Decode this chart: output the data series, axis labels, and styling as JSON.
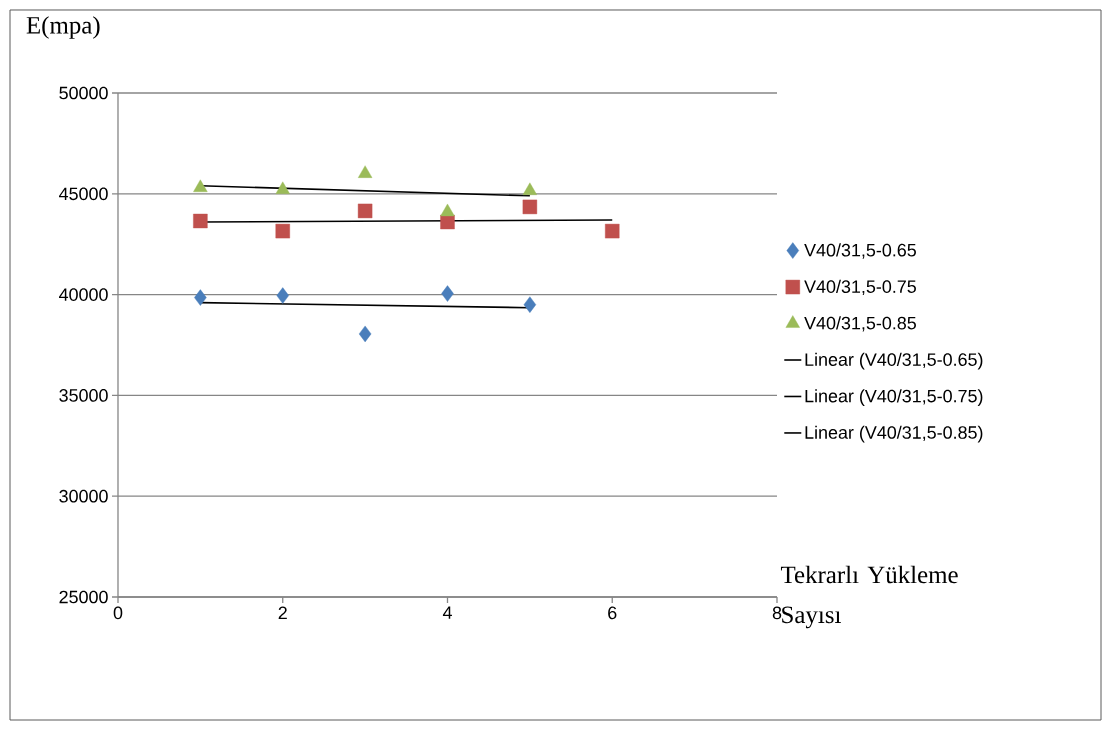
{
  "chart_data": {
    "type": "scatter",
    "xlabel": "Tekrarlı Yükleme Sayısı",
    "ylabel": "E(mpa)",
    "xlim": [
      0,
      8
    ],
    "xticks": [
      0,
      2,
      4,
      6,
      8
    ],
    "ylim": [
      25000,
      50000
    ],
    "yticks": [
      25000,
      30000,
      35000,
      40000,
      45000,
      50000
    ],
    "grid": "y",
    "legend": "right",
    "series": [
      {
        "name": "V40/31,5-0.65",
        "type": "scatter",
        "marker": "diamond",
        "color": "#4a7ebb",
        "x": [
          1,
          2,
          3,
          4,
          5
        ],
        "values": [
          39850,
          39950,
          38050,
          40050,
          39500
        ]
      },
      {
        "name": "V40/31,5-0.75",
        "type": "scatter",
        "marker": "square",
        "color": "#c0504d",
        "x": [
          1,
          2,
          3,
          4,
          5,
          6
        ],
        "values": [
          43650,
          43150,
          44150,
          43600,
          44350,
          43150
        ]
      },
      {
        "name": "V40/31,5-0.85",
        "type": "scatter",
        "marker": "triangle",
        "color": "#9bbb59",
        "x": [
          1,
          2,
          3,
          4,
          5
        ],
        "values": [
          45300,
          45200,
          46000,
          44100,
          45150
        ]
      },
      {
        "name": "Linear (V40/31,5-0.65)",
        "type": "line",
        "marker": "none",
        "color": "#000000",
        "x": [
          1,
          5
        ],
        "values": [
          39600,
          39350
        ]
      },
      {
        "name": "Linear (V40/31,5-0.75)",
        "type": "line",
        "marker": "none",
        "color": "#000000",
        "x": [
          1,
          6
        ],
        "values": [
          43600,
          43700
        ]
      },
      {
        "name": "Linear (V40/31,5-0.85)",
        "type": "line",
        "marker": "none",
        "color": "#000000",
        "x": [
          1,
          5
        ],
        "values": [
          45400,
          44900
        ]
      }
    ]
  }
}
